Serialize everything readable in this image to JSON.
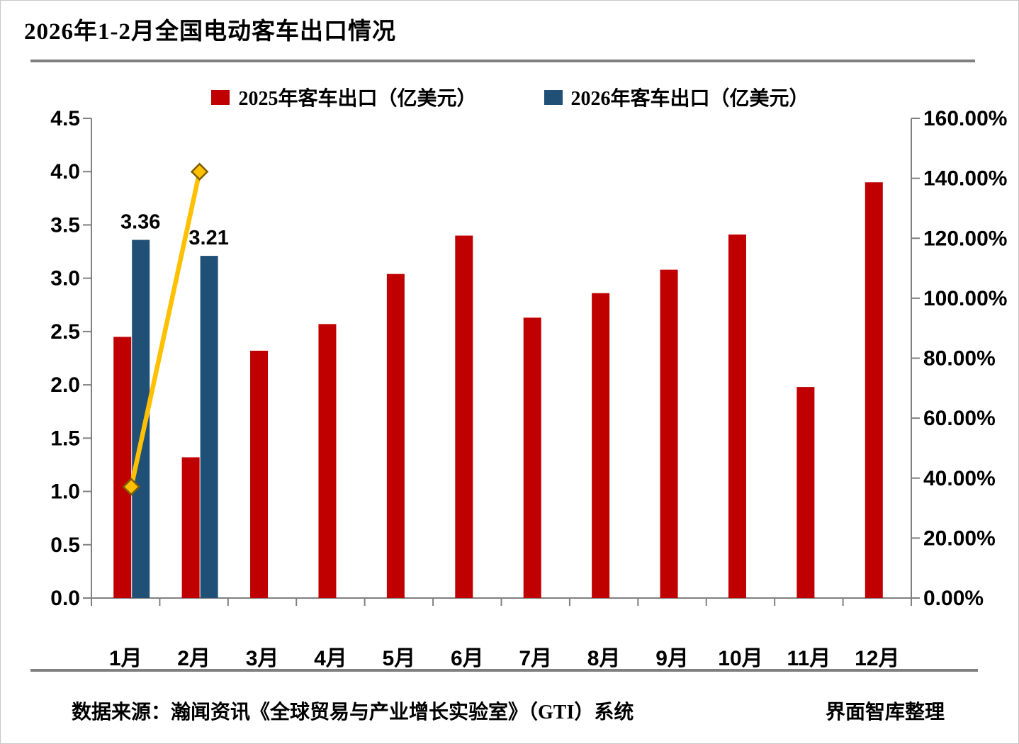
{
  "page": {
    "title": "2026年1-2月全国电动客车出口情况",
    "source_left": "数据来源：瀚闻资讯《全球贸易与产业增长实验室》（GTI）系统",
    "source_right": "界面智库整理"
  },
  "legend": {
    "items": [
      {
        "label": "2025年客车出口（亿美元）",
        "color": "#C00000"
      },
      {
        "label": "2026年客车出口（亿美元）",
        "color": "#215077"
      }
    ]
  },
  "colors": {
    "bar_2025": "#C00000",
    "bar_2026": "#215077",
    "growth_line": "#FFC000",
    "marker_stroke": "#7F6000",
    "axis": "#808080",
    "separator": "#808080",
    "text": "#000000"
  },
  "chart_data": {
    "type": "bar",
    "categories": [
      "1月",
      "2月",
      "3月",
      "4月",
      "5月",
      "6月",
      "7月",
      "8月",
      "9月",
      "10月",
      "11月",
      "12月"
    ],
    "series": [
      {
        "name": "2025年客车出口（亿美元）",
        "type": "bar",
        "axis": "left",
        "color": "#C00000",
        "values": [
          2.45,
          1.32,
          2.32,
          2.57,
          3.04,
          3.4,
          2.63,
          2.86,
          3.08,
          3.41,
          1.98,
          3.9
        ]
      },
      {
        "name": "2026年客车出口（亿美元）",
        "type": "bar",
        "axis": "left",
        "color": "#215077",
        "values": [
          3.36,
          3.21,
          null,
          null,
          null,
          null,
          null,
          null,
          null,
          null,
          null,
          null
        ],
        "data_labels": [
          "3.36",
          "3.21"
        ]
      }
    ],
    "growth_line": {
      "type": "line",
      "axis": "right",
      "unit": "%",
      "color": "#FFC000",
      "marker": "diamond",
      "values": [
        37.1,
        142.2,
        null,
        null,
        null,
        null,
        null,
        null,
        null,
        null,
        null,
        null
      ]
    },
    "left_axis": {
      "min": 0,
      "max": 4.5,
      "step": 0.5,
      "tick_labels": [
        "0.0",
        "0.5",
        "1.0",
        "1.5",
        "2.0",
        "2.5",
        "3.0",
        "3.5",
        "4.0",
        "4.5"
      ]
    },
    "right_axis": {
      "min": 0,
      "max": 160,
      "step": 20,
      "tick_labels": [
        "0.00%",
        "20.00%",
        "40.00%",
        "60.00%",
        "80.00%",
        "100.00%",
        "120.00%",
        "140.00%",
        "160.00%"
      ]
    },
    "grid": false,
    "legend_position": "top"
  }
}
